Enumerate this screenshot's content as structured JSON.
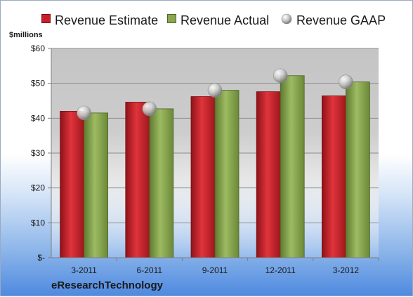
{
  "chart_data": {
    "type": "bar",
    "ylabel": "$millions",
    "ylim": [
      0,
      60
    ],
    "yticks": [
      0,
      10,
      20,
      30,
      40,
      50,
      60
    ],
    "ytick_labels": [
      "$-",
      "$10",
      "$20",
      "$30",
      "$40",
      "$50",
      "$60"
    ],
    "categories": [
      "3-2011",
      "6-2011",
      "9-2011",
      "12-2011",
      "3-2012"
    ],
    "series": [
      {
        "name": "Revenue Estimate",
        "type": "bar",
        "color": "#c8202a",
        "values": [
          42.0,
          44.6,
          46.2,
          47.6,
          46.4
        ]
      },
      {
        "name": "Revenue Actual",
        "type": "bar",
        "color": "#8aa650",
        "values": [
          41.5,
          42.7,
          48.0,
          52.2,
          50.4
        ]
      },
      {
        "name": "Revenue GAAP",
        "type": "marker",
        "color": "#b9b9b9",
        "values": [
          41.5,
          42.7,
          48.0,
          52.2,
          50.4
        ]
      }
    ],
    "grid": true,
    "legend_position": "top"
  },
  "footer": {
    "company": "eResearchTechnology"
  }
}
